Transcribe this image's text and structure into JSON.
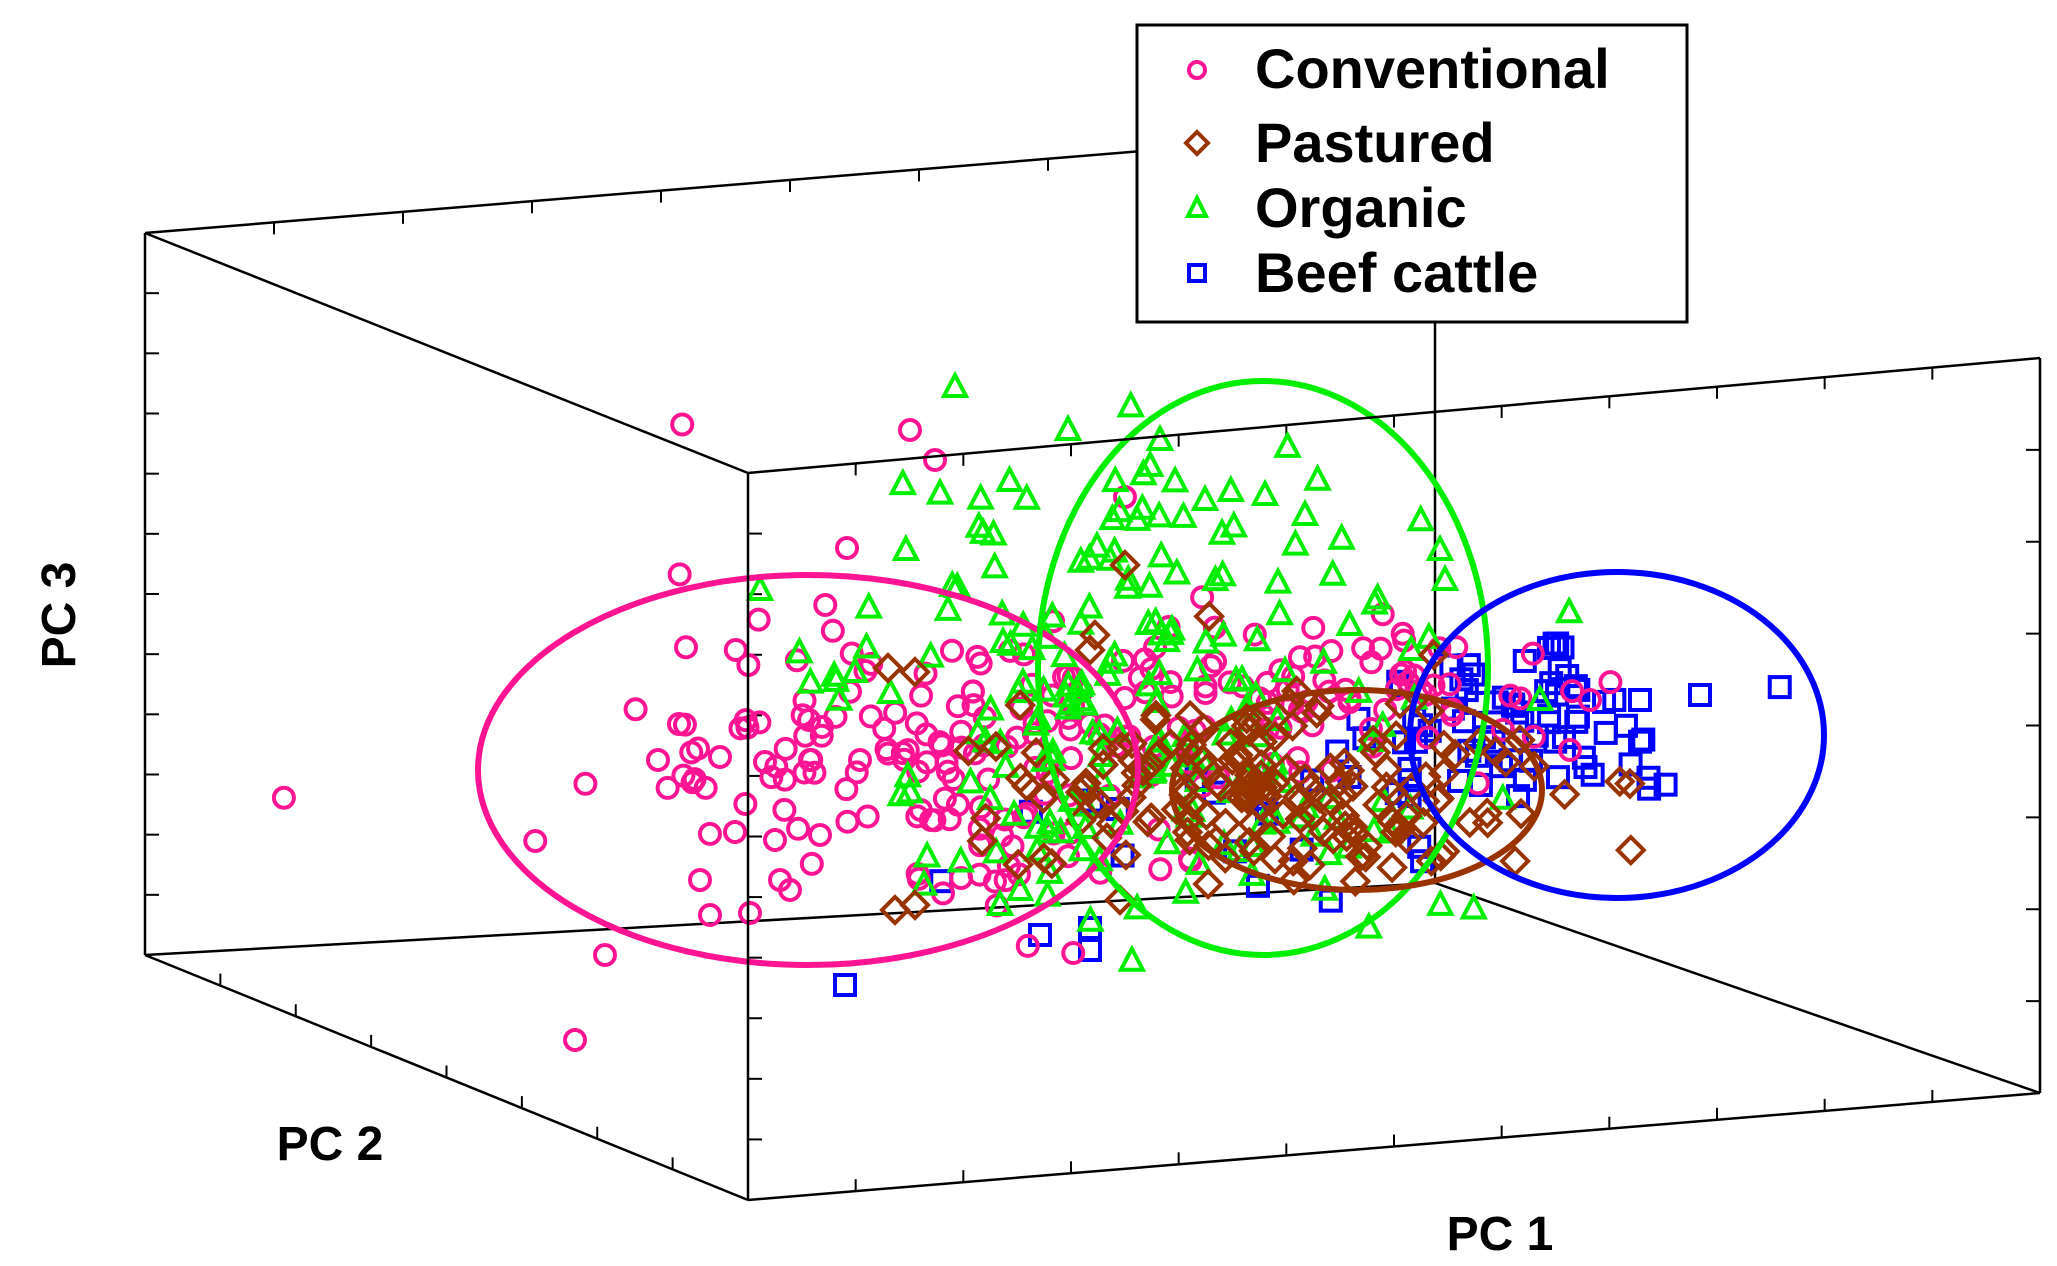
{
  "colors": {
    "conventional": "#ff1493",
    "pastured": "#993300",
    "organic": "#00ee00",
    "beef_cattle": "#0000ff",
    "frame": "#000000"
  },
  "chart_data": {
    "type": "scatter",
    "projection": "3d",
    "title": "",
    "axes": {
      "x_label": "PC 1",
      "y_label": "PC 2",
      "z_label": "PC 3"
    },
    "legend": {
      "placement": "top-center",
      "entries": [
        {
          "label": "Conventional",
          "marker": "circle",
          "color": "#ff1493"
        },
        {
          "label": "Pastured",
          "marker": "diamond",
          "color": "#993300"
        },
        {
          "label": "Organic",
          "marker": "triangle",
          "color": "#00ee00"
        },
        {
          "label": "Beef cattle",
          "marker": "square",
          "color": "#0000ff"
        }
      ]
    },
    "confidence_ellipses": [
      {
        "group": "Conventional",
        "color": "#ff1493"
      },
      {
        "group": "Organic",
        "color": "#00ee00"
      },
      {
        "group": "Pastured",
        "color": "#993300"
      },
      {
        "group": "Beef cattle",
        "color": "#0000ff"
      }
    ],
    "grid": false
  }
}
